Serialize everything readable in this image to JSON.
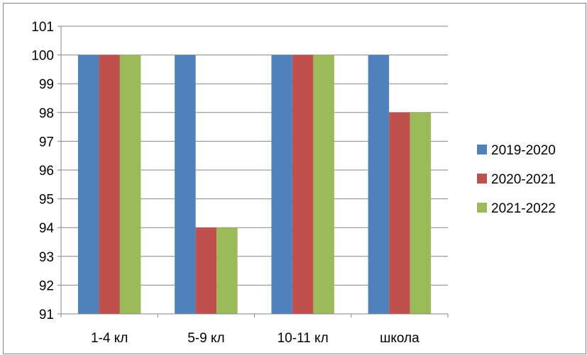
{
  "header_fragment": "",
  "chart_data": {
    "type": "bar",
    "categories": [
      "1-4 кл",
      "5-9 кл",
      "10-11 кл",
      "школа"
    ],
    "series": [
      {
        "name": "2019-2020",
        "color": "#4F81BD",
        "values": [
          100,
          100,
          100,
          100
        ]
      },
      {
        "name": "2020-2021",
        "color": "#C0504D",
        "values": [
          100,
          94,
          100,
          98
        ]
      },
      {
        "name": "2021-2022",
        "color": "#9BBB59",
        "values": [
          100,
          94,
          100,
          98
        ]
      }
    ],
    "title": "",
    "xlabel": "",
    "ylabel": "",
    "ylim": [
      91,
      101
    ],
    "yticks": [
      "91",
      "92",
      "93",
      "94",
      "95",
      "96",
      "97",
      "98",
      "99",
      "100",
      "101"
    ],
    "grid": true,
    "legend_position": "right"
  }
}
